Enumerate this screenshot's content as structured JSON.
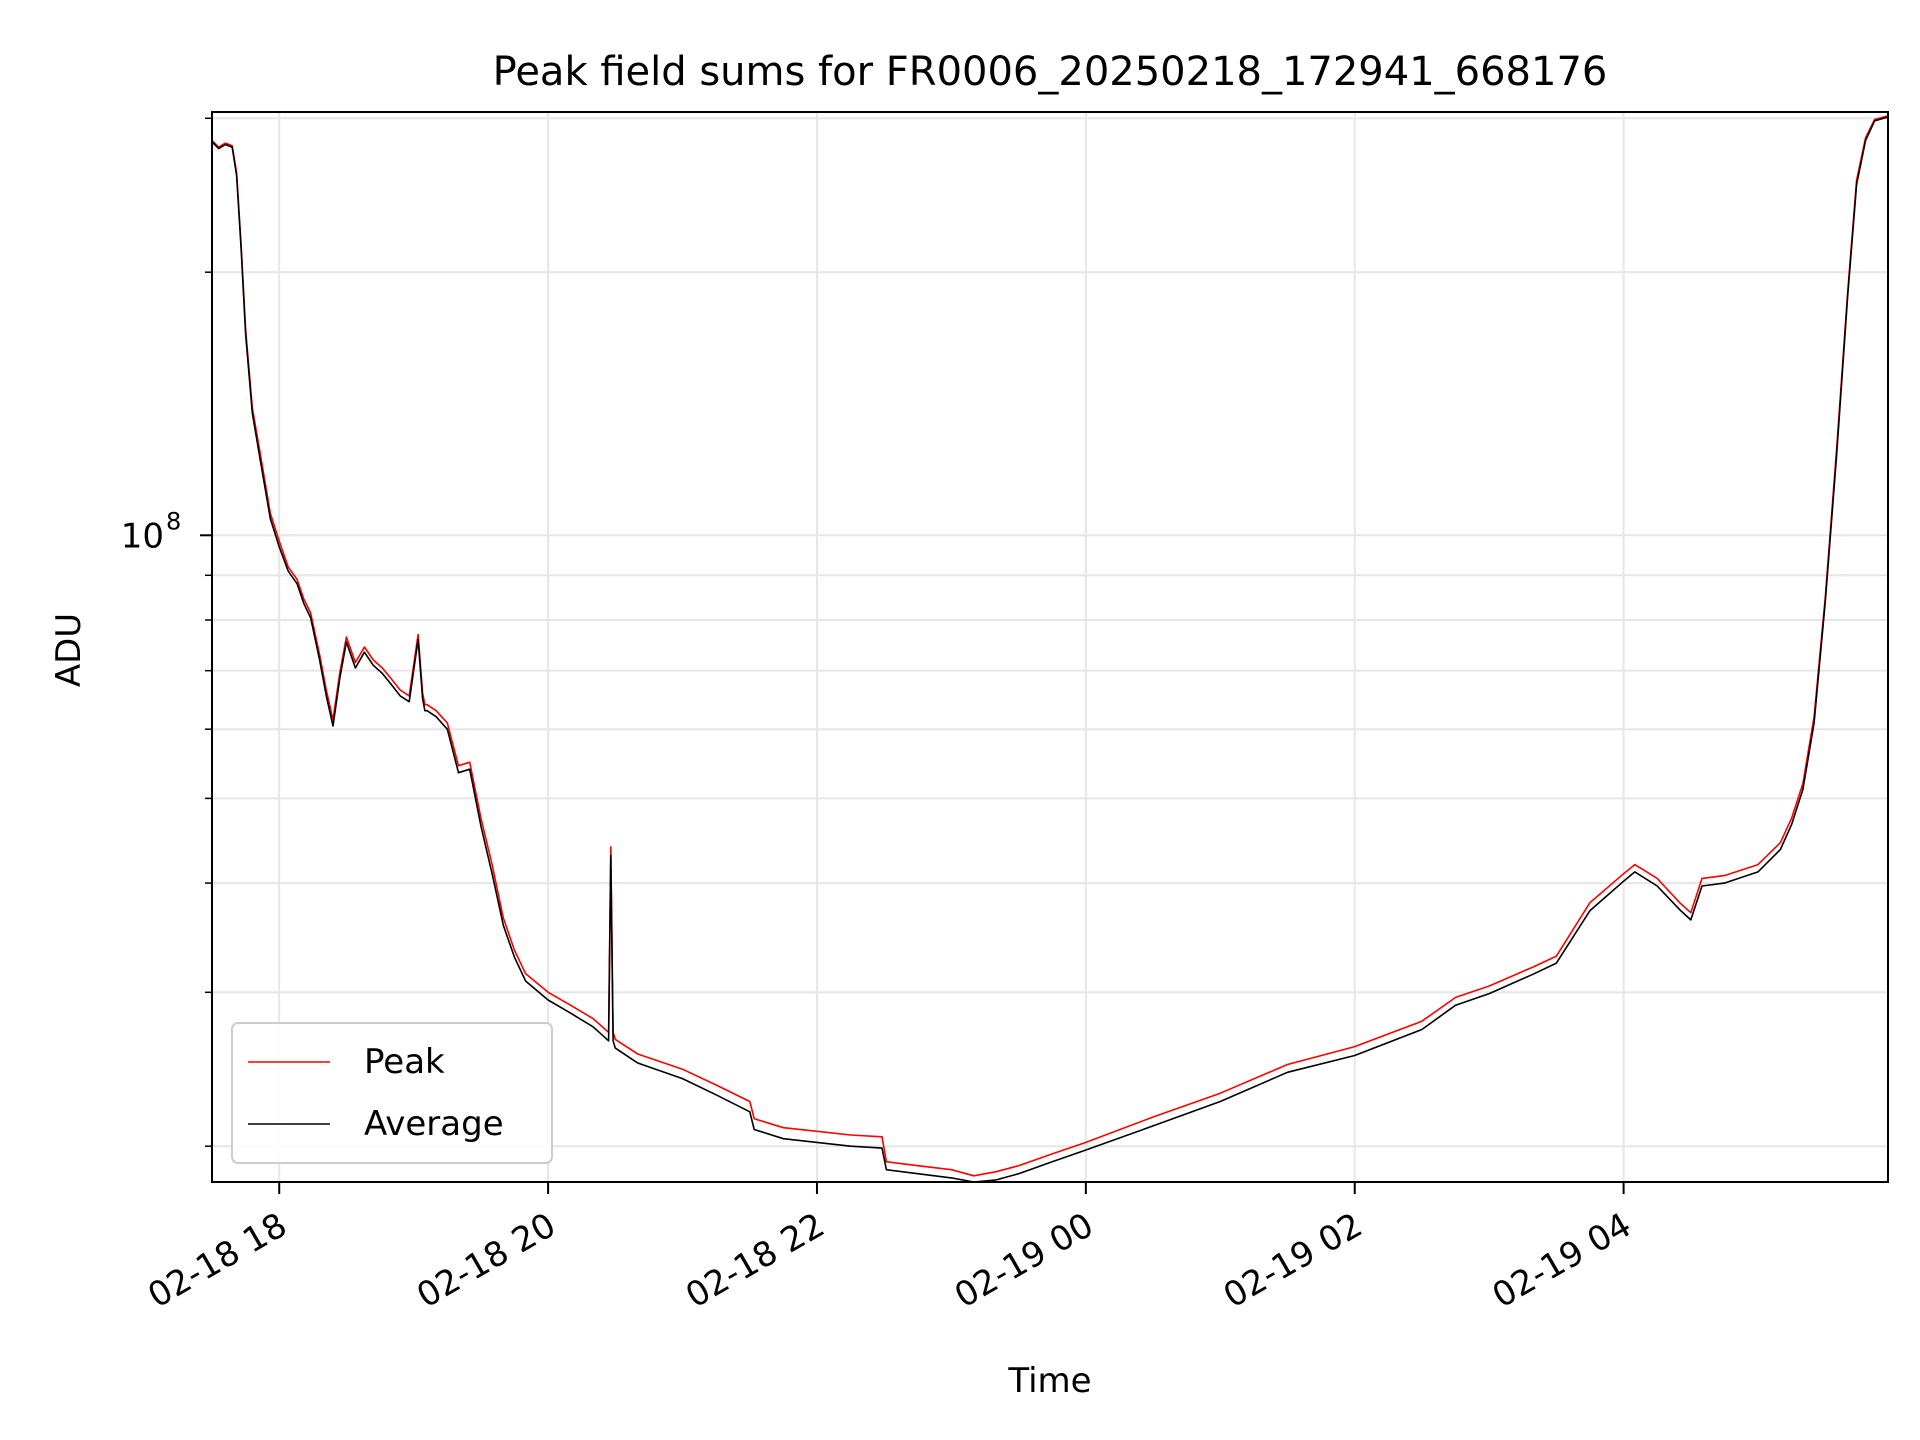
{
  "chart_data": {
    "type": "line",
    "title": "Peak field sums for FR0006_20250218_172941_668176",
    "xlabel": "Time",
    "ylabel": "ADU",
    "yscale": "log",
    "grid": true,
    "legend_position": "lower-left",
    "xlim": [
      "2025-02-18 17:30",
      "2025-02-19 05:58"
    ],
    "ylim": [
      18200000,
      305000000
    ],
    "x_ticks": [
      {
        "value": "2025-02-18 18:00",
        "label": "02-18 18"
      },
      {
        "value": "2025-02-18 20:00",
        "label": "02-18 20"
      },
      {
        "value": "2025-02-18 22:00",
        "label": "02-18 22"
      },
      {
        "value": "2025-02-19 00:00",
        "label": "02-19 00"
      },
      {
        "value": "2025-02-19 02:00",
        "label": "02-19 02"
      },
      {
        "value": "2025-02-19 04:00",
        "label": "02-19 04"
      }
    ],
    "y_major_tick": {
      "value": 100000000,
      "label_base": "10",
      "label_exp": "8"
    },
    "y_minor_ticks": [
      20000000,
      30000000,
      40000000,
      50000000,
      60000000,
      70000000,
      80000000,
      90000000,
      200000000,
      300000000
    ],
    "series": [
      {
        "name": "Peak",
        "color": "#ff0000",
        "x": [
          "2025-02-18 17:30",
          "2025-02-18 17:33",
          "2025-02-18 17:36",
          "2025-02-18 17:39",
          "2025-02-18 17:41",
          "2025-02-18 17:43",
          "2025-02-18 17:45",
          "2025-02-18 17:48",
          "2025-02-18 17:52",
          "2025-02-18 17:56",
          "2025-02-18 18:00",
          "2025-02-18 18:04",
          "2025-02-18 18:08",
          "2025-02-18 18:11",
          "2025-02-18 18:14",
          "2025-02-18 18:18",
          "2025-02-18 18:21",
          "2025-02-18 18:24",
          "2025-02-18 18:27",
          "2025-02-18 18:30",
          "2025-02-18 18:34",
          "2025-02-18 18:38",
          "2025-02-18 18:42",
          "2025-02-18 18:46",
          "2025-02-18 18:50",
          "2025-02-18 18:54",
          "2025-02-18 18:58",
          "2025-02-18 19:02",
          "2025-02-18 19:04",
          "2025-02-18 19:05",
          "2025-02-18 19:06",
          "2025-02-18 19:10",
          "2025-02-18 19:15",
          "2025-02-18 19:20",
          "2025-02-18 19:25",
          "2025-02-18 19:30",
          "2025-02-18 19:35",
          "2025-02-18 19:40",
          "2025-02-18 19:45",
          "2025-02-18 19:50",
          "2025-02-18 20:00",
          "2025-02-18 20:10",
          "2025-02-18 20:20",
          "2025-02-18 20:27",
          "2025-02-18 20:28",
          "2025-02-18 20:29",
          "2025-02-18 20:30",
          "2025-02-18 20:40",
          "2025-02-18 21:00",
          "2025-02-18 21:15",
          "2025-02-18 21:30",
          "2025-02-18 21:32",
          "2025-02-18 21:45",
          "2025-02-18 22:00",
          "2025-02-18 22:15",
          "2025-02-18 22:29",
          "2025-02-18 22:31",
          "2025-02-18 22:45",
          "2025-02-18 23:00",
          "2025-02-18 23:10",
          "2025-02-18 23:20",
          "2025-02-18 23:30",
          "2025-02-18 23:45",
          "2025-02-19 00:00",
          "2025-02-19 00:30",
          "2025-02-19 01:00",
          "2025-02-19 01:30",
          "2025-02-19 02:00",
          "2025-02-19 02:30",
          "2025-02-19 02:45",
          "2025-02-19 03:00",
          "2025-02-19 03:20",
          "2025-02-19 03:30",
          "2025-02-19 03:45",
          "2025-02-19 04:00",
          "2025-02-19 04:05",
          "2025-02-19 04:15",
          "2025-02-19 04:25",
          "2025-02-19 04:30",
          "2025-02-19 04:35",
          "2025-02-19 04:45",
          "2025-02-19 05:00",
          "2025-02-19 05:10",
          "2025-02-19 05:15",
          "2025-02-19 05:20",
          "2025-02-19 05:25",
          "2025-02-19 05:30",
          "2025-02-19 05:35",
          "2025-02-19 05:40",
          "2025-02-19 05:44",
          "2025-02-19 05:48",
          "2025-02-19 05:52",
          "2025-02-19 05:58"
        ],
        "values": [
          283000000,
          278000000,
          281000000,
          279000000,
          260000000,
          215000000,
          172000000,
          140000000,
          122000000,
          106000000,
          98500000,
          92000000,
          89000000,
          84500000,
          81500000,
          73000000,
          66500000,
          61500000,
          69500000,
          76500000,
          71500000,
          74500000,
          72000000,
          70500000,
          68500000,
          66500000,
          65500000,
          77000000,
          66000000,
          64000000,
          64000000,
          63000000,
          61000000,
          54500000,
          55000000,
          47500000,
          42000000,
          36500000,
          33500000,
          31500000,
          30000000,
          29000000,
          28000000,
          27000000,
          44000000,
          27000000,
          26500000,
          25500000,
          24500000,
          23500000,
          22500000,
          21500000,
          21000000,
          20800000,
          20600000,
          20500000,
          19200000,
          19000000,
          18800000,
          18500000,
          18700000,
          19000000,
          19600000,
          20200000,
          21600000,
          23000000,
          24800000,
          26000000,
          27800000,
          29600000,
          30500000,
          32100000,
          33000000,
          38000000,
          41000000,
          42000000,
          40500000,
          38000000,
          37000000,
          40500000,
          40800000,
          42000000,
          44500000,
          47500000,
          52000000,
          62000000,
          85000000,
          125000000,
          190000000,
          255000000,
          285000000,
          299000000,
          302000000
        ]
      },
      {
        "name": "Average",
        "color": "#000000",
        "x": [
          "2025-02-18 17:30",
          "2025-02-18 17:33",
          "2025-02-18 17:36",
          "2025-02-18 17:39",
          "2025-02-18 17:41",
          "2025-02-18 17:43",
          "2025-02-18 17:45",
          "2025-02-18 17:48",
          "2025-02-18 17:52",
          "2025-02-18 17:56",
          "2025-02-18 18:00",
          "2025-02-18 18:04",
          "2025-02-18 18:08",
          "2025-02-18 18:11",
          "2025-02-18 18:14",
          "2025-02-18 18:18",
          "2025-02-18 18:21",
          "2025-02-18 18:24",
          "2025-02-18 18:27",
          "2025-02-18 18:30",
          "2025-02-18 18:34",
          "2025-02-18 18:38",
          "2025-02-18 18:42",
          "2025-02-18 18:46",
          "2025-02-18 18:50",
          "2025-02-18 18:54",
          "2025-02-18 18:58",
          "2025-02-18 19:02",
          "2025-02-18 19:04",
          "2025-02-18 19:05",
          "2025-02-18 19:06",
          "2025-02-18 19:10",
          "2025-02-18 19:15",
          "2025-02-18 19:20",
          "2025-02-18 19:25",
          "2025-02-18 19:30",
          "2025-02-18 19:35",
          "2025-02-18 19:40",
          "2025-02-18 19:45",
          "2025-02-18 19:50",
          "2025-02-18 20:00",
          "2025-02-18 20:10",
          "2025-02-18 20:20",
          "2025-02-18 20:27",
          "2025-02-18 20:28",
          "2025-02-18 20:29",
          "2025-02-18 20:30",
          "2025-02-18 20:40",
          "2025-02-18 21:00",
          "2025-02-18 21:15",
          "2025-02-18 21:30",
          "2025-02-18 21:32",
          "2025-02-18 21:45",
          "2025-02-18 22:00",
          "2025-02-18 22:15",
          "2025-02-18 22:29",
          "2025-02-18 22:31",
          "2025-02-18 22:45",
          "2025-02-18 23:00",
          "2025-02-18 23:10",
          "2025-02-18 23:20",
          "2025-02-18 23:30",
          "2025-02-18 23:45",
          "2025-02-19 00:00",
          "2025-02-19 00:30",
          "2025-02-19 01:00",
          "2025-02-19 01:30",
          "2025-02-19 02:00",
          "2025-02-19 02:30",
          "2025-02-19 02:45",
          "2025-02-19 03:00",
          "2025-02-19 03:20",
          "2025-02-19 03:30",
          "2025-02-19 03:45",
          "2025-02-19 04:00",
          "2025-02-19 04:05",
          "2025-02-19 04:15",
          "2025-02-19 04:25",
          "2025-02-19 04:30",
          "2025-02-19 04:35",
          "2025-02-19 04:45",
          "2025-02-19 05:00",
          "2025-02-19 05:10",
          "2025-02-19 05:15",
          "2025-02-19 05:20",
          "2025-02-19 05:25",
          "2025-02-19 05:30",
          "2025-02-19 05:35",
          "2025-02-19 05:40",
          "2025-02-19 05:44",
          "2025-02-19 05:48",
          "2025-02-19 05:52",
          "2025-02-19 05:58"
        ],
        "values": [
          282000000,
          277000000,
          280000000,
          278000000,
          258000000,
          213000000,
          170000000,
          138000000,
          120000000,
          104500000,
          97000000,
          91000000,
          88000000,
          83500000,
          80500000,
          72000000,
          65500000,
          60500000,
          68500000,
          75500000,
          70500000,
          73500000,
          71000000,
          69500000,
          67500000,
          65500000,
          64500000,
          76000000,
          65000000,
          63000000,
          63000000,
          62000000,
          60000000,
          53500000,
          54000000,
          46500000,
          41000000,
          35800000,
          32900000,
          30900000,
          29400000,
          28400000,
          27400000,
          26400000,
          43000000,
          26400000,
          25900000,
          24900000,
          23900000,
          22900000,
          21900000,
          20900000,
          20400000,
          20200000,
          20000000,
          19900000,
          18800000,
          18600000,
          18400000,
          18200000,
          18300000,
          18600000,
          19200000,
          19800000,
          21100000,
          22500000,
          24300000,
          25400000,
          27200000,
          29000000,
          29900000,
          31500000,
          32400000,
          37200000,
          40200000,
          41200000,
          39700000,
          37300000,
          36300000,
          39700000,
          40000000,
          41200000,
          43700000,
          46700000,
          51200000,
          61000000,
          84000000,
          123000000,
          188000000,
          252000000,
          283000000,
          298000000,
          301000000
        ]
      }
    ]
  }
}
